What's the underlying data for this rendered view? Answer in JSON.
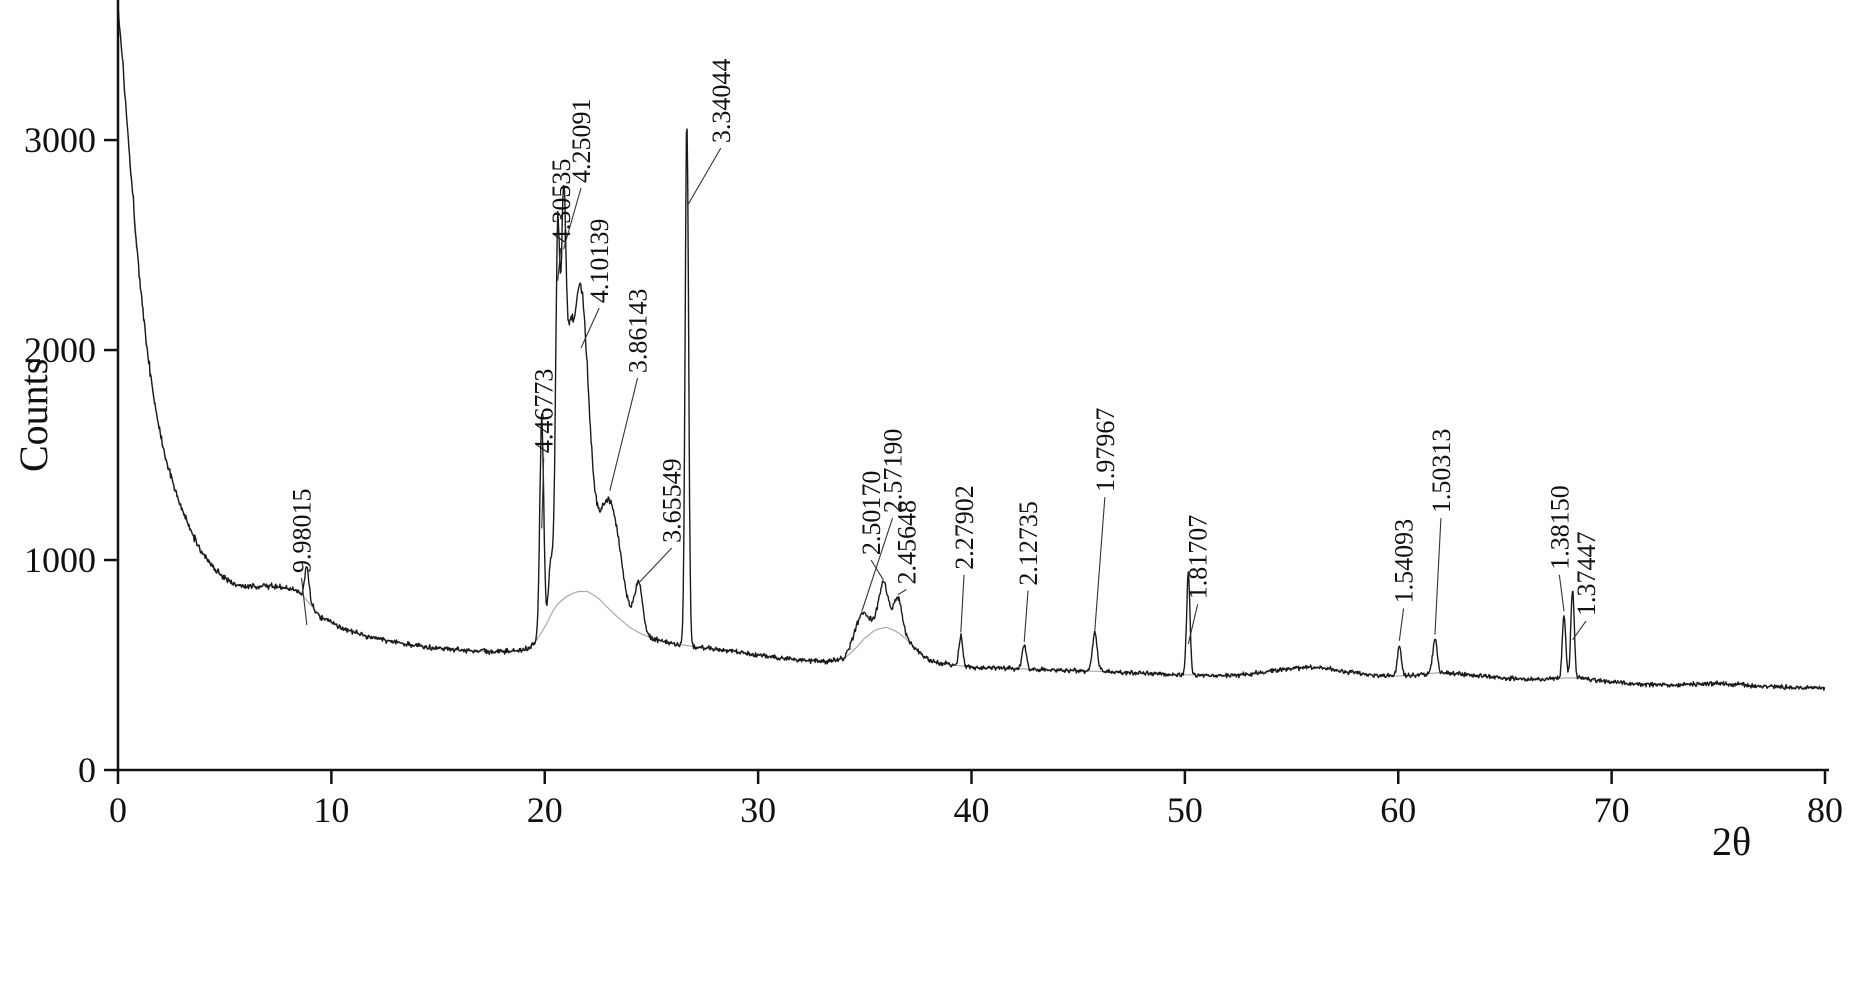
{
  "chart_data": {
    "type": "line",
    "title": "",
    "xlabel": "2θ",
    "ylabel": "Counts",
    "xlim": [
      0,
      80
    ],
    "ylim": [
      0,
      3667
    ],
    "xticks": [
      0,
      10,
      20,
      30,
      40,
      50,
      60,
      70,
      80
    ],
    "yticks": [
      0,
      1000,
      2000,
      3000
    ],
    "grid": false,
    "legend": "none",
    "trace_color": "#1a1a1a",
    "background_curve_color": "#aaaaaa",
    "axis_color": "#111111",
    "description": "Powder X-ray diffraction pattern, noisy count trace with labeled d-spacings (angstrom) above peaks",
    "baseline": [
      [
        0,
        3620
      ],
      [
        0.2,
        3400
      ],
      [
        0.4,
        3120
      ],
      [
        0.6,
        2860
      ],
      [
        0.8,
        2600
      ],
      [
        1.0,
        2360
      ],
      [
        1.2,
        2150
      ],
      [
        1.4,
        1975
      ],
      [
        1.6,
        1830
      ],
      [
        1.8,
        1700
      ],
      [
        2.0,
        1590
      ],
      [
        2.3,
        1460
      ],
      [
        2.6,
        1360
      ],
      [
        3.0,
        1240
      ],
      [
        3.4,
        1140
      ],
      [
        3.8,
        1060
      ],
      [
        4.2,
        1000
      ],
      [
        4.6,
        950
      ],
      [
        5.0,
        915
      ],
      [
        5.5,
        885
      ],
      [
        6.0,
        870
      ],
      [
        6.5,
        875
      ],
      [
        7.0,
        878
      ],
      [
        7.5,
        872
      ],
      [
        8.0,
        862
      ],
      [
        8.5,
        850
      ],
      [
        9.0,
        790
      ],
      [
        9.5,
        730
      ],
      [
        10,
        700
      ],
      [
        11,
        655
      ],
      [
        12,
        630
      ],
      [
        13,
        608
      ],
      [
        14,
        592
      ],
      [
        15,
        582
      ],
      [
        16,
        572
      ],
      [
        17,
        566
      ],
      [
        18,
        562
      ],
      [
        19,
        572
      ],
      [
        19.5,
        600
      ],
      [
        20,
        680
      ],
      [
        20.5,
        780
      ],
      [
        21,
        825
      ],
      [
        21.5,
        850
      ],
      [
        22,
        850
      ],
      [
        22.5,
        820
      ],
      [
        23,
        768
      ],
      [
        23.5,
        720
      ],
      [
        24,
        678
      ],
      [
        24.5,
        650
      ],
      [
        25,
        628
      ],
      [
        25.5,
        612
      ],
      [
        26,
        602
      ],
      [
        27,
        588
      ],
      [
        28,
        576
      ],
      [
        29,
        564
      ],
      [
        30,
        548
      ],
      [
        31,
        534
      ],
      [
        32,
        523
      ],
      [
        33,
        516
      ],
      [
        34,
        528
      ],
      [
        34.5,
        572
      ],
      [
        35,
        628
      ],
      [
        35.5,
        668
      ],
      [
        36,
        680
      ],
      [
        36.5,
        660
      ],
      [
        37,
        618
      ],
      [
        37.5,
        568
      ],
      [
        38,
        522
      ],
      [
        39,
        501
      ],
      [
        40,
        490
      ],
      [
        41,
        486
      ],
      [
        42,
        483
      ],
      [
        43,
        479
      ],
      [
        44,
        476
      ],
      [
        45,
        473
      ],
      [
        46,
        470
      ],
      [
        47,
        466
      ],
      [
        48,
        461
      ],
      [
        49,
        457
      ],
      [
        50,
        454
      ],
      [
        51,
        451
      ],
      [
        52,
        450
      ],
      [
        53,
        456
      ],
      [
        54,
        470
      ],
      [
        55,
        484
      ],
      [
        56,
        490
      ],
      [
        57,
        479
      ],
      [
        58,
        462
      ],
      [
        59,
        450
      ],
      [
        60,
        447
      ],
      [
        61,
        455
      ],
      [
        62,
        464
      ],
      [
        63,
        458
      ],
      [
        64,
        447
      ],
      [
        65,
        438
      ],
      [
        66,
        433
      ],
      [
        67,
        434
      ],
      [
        68,
        439
      ],
      [
        68.5,
        437
      ],
      [
        69,
        429
      ],
      [
        70,
        419
      ],
      [
        71,
        411
      ],
      [
        72,
        407
      ],
      [
        73,
        404
      ],
      [
        74,
        409
      ],
      [
        75,
        413
      ],
      [
        76,
        407
      ],
      [
        77,
        399
      ],
      [
        78,
        395
      ],
      [
        79,
        392
      ],
      [
        80,
        389
      ]
    ],
    "peaks": [
      {
        "center": 8.85,
        "amp": 160,
        "sigma": 0.1
      },
      {
        "center": 19.86,
        "amp": 1020,
        "sigma": 0.09
      },
      {
        "center": 20.3,
        "amp": 260,
        "sigma": 0.12
      },
      {
        "center": 20.61,
        "amp": 1700,
        "sigma": 0.1
      },
      {
        "center": 20.88,
        "amp": 1630,
        "sigma": 0.11
      },
      {
        "center": 21.15,
        "amp": 560,
        "sigma": 0.14
      },
      {
        "center": 21.65,
        "amp": 1460,
        "sigma": 0.4
      },
      {
        "center": 23.05,
        "amp": 520,
        "sigma": 0.5
      },
      {
        "center": 24.4,
        "amp": 230,
        "sigma": 0.18
      },
      {
        "center": 26.66,
        "amp": 2520,
        "sigma": 0.08
      },
      {
        "center": 34.86,
        "amp": 130,
        "sigma": 0.35
      },
      {
        "center": 35.87,
        "amp": 215,
        "sigma": 0.22
      },
      {
        "center": 36.55,
        "amp": 170,
        "sigma": 0.2
      },
      {
        "center": 39.5,
        "amp": 140,
        "sigma": 0.09
      },
      {
        "center": 42.47,
        "amp": 110,
        "sigma": 0.1
      },
      {
        "center": 45.78,
        "amp": 185,
        "sigma": 0.11
      },
      {
        "center": 50.16,
        "amp": 475,
        "sigma": 0.08
      },
      {
        "center": 60.05,
        "amp": 150,
        "sigma": 0.09
      },
      {
        "center": 61.72,
        "amp": 165,
        "sigma": 0.1
      },
      {
        "center": 67.77,
        "amp": 300,
        "sigma": 0.08
      },
      {
        "center": 68.17,
        "amp": 425,
        "sigma": 0.08
      }
    ],
    "noise": {
      "base": 9,
      "scale": 0.011,
      "seed": 1337,
      "step": 0.03
    },
    "annotations": [
      {
        "d": "9.98015",
        "peak_2theta": 8.85,
        "label_2theta": 8.6,
        "label_counts": 905,
        "line_end_counts": 690
      },
      {
        "d": "4.46773",
        "peak_2theta": 19.86,
        "label_2theta": 19.95,
        "label_counts": 1476,
        "line_end_counts": 1150
      },
      {
        "d": "4.30535",
        "peak_2theta": 20.61,
        "label_2theta": 20.75,
        "label_counts": 2476,
        "line_end_counts": 2330
      },
      {
        "d": "4.25091",
        "peak_2theta": 20.88,
        "label_2theta": 21.7,
        "label_counts": 2762,
        "line_end_counts": 2480
      },
      {
        "d": "4.10139",
        "peak_2theta": 21.7,
        "label_2theta": 22.55,
        "label_counts": 2190,
        "line_end_counts": 2010
      },
      {
        "d": "3.86143",
        "peak_2theta": 23.05,
        "label_2theta": 24.35,
        "label_counts": 1857,
        "line_end_counts": 1330
      },
      {
        "d": "3.65549",
        "peak_2theta": 24.4,
        "label_2theta": 25.95,
        "label_counts": 1048,
        "line_end_counts": 890
      },
      {
        "d": "3.34044",
        "peak_2theta": 26.7,
        "label_2theta": 28.25,
        "label_counts": 2952,
        "line_end_counts": 2690
      },
      {
        "d": "2.50170",
        "peak_2theta": 35.87,
        "label_2theta": 35.3,
        "label_counts": 990,
        "line_end_counts": 905
      },
      {
        "d": "2.57190",
        "peak_2theta": 34.86,
        "label_2theta": 36.3,
        "label_counts": 1190,
        "line_end_counts": 755
      },
      {
        "d": "2.45648",
        "peak_2theta": 36.55,
        "label_2theta": 36.95,
        "label_counts": 850,
        "line_end_counts": 835
      },
      {
        "d": "2.27902",
        "peak_2theta": 39.5,
        "label_2theta": 39.65,
        "label_counts": 920,
        "line_end_counts": 655
      },
      {
        "d": "2.12735",
        "peak_2theta": 42.47,
        "label_2theta": 42.65,
        "label_counts": 845,
        "line_end_counts": 610
      },
      {
        "d": "1.97967",
        "peak_2theta": 45.78,
        "label_2theta": 46.25,
        "label_counts": 1290,
        "line_end_counts": 665
      },
      {
        "d": "1.81707",
        "peak_2theta": 50.16,
        "label_2theta": 50.6,
        "label_counts": 780,
        "line_end_counts": 600
      },
      {
        "d": "1.54093",
        "peak_2theta": 60.05,
        "label_2theta": 60.25,
        "label_counts": 760,
        "line_end_counts": 615
      },
      {
        "d": "1.50313",
        "peak_2theta": 61.72,
        "label_2theta": 62.0,
        "label_counts": 1190,
        "line_end_counts": 645
      },
      {
        "d": "1.38150",
        "peak_2theta": 67.77,
        "label_2theta": 67.55,
        "label_counts": 920,
        "line_end_counts": 755
      },
      {
        "d": "1.37447",
        "peak_2theta": 68.17,
        "label_2theta": 68.8,
        "label_counts": 700,
        "line_end_counts": 620
      }
    ]
  }
}
